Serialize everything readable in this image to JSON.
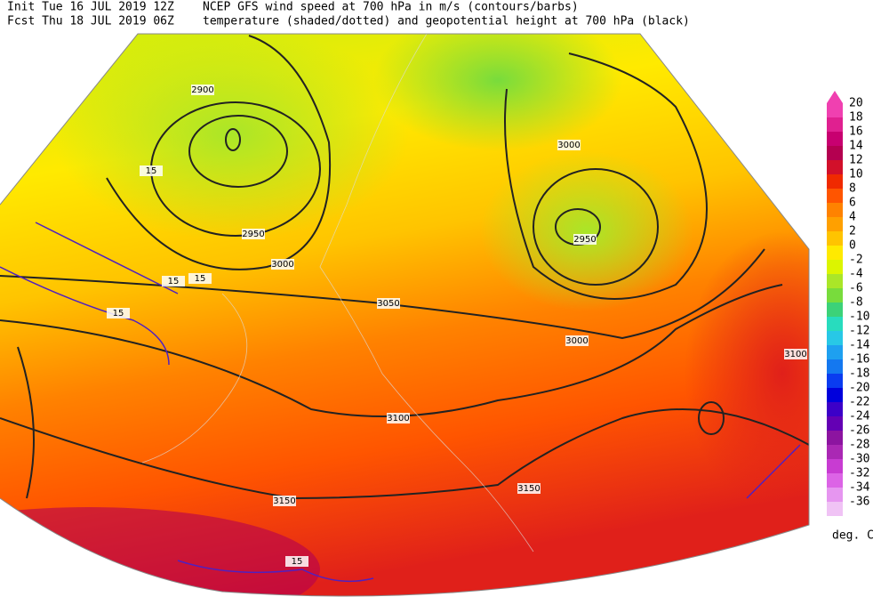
{
  "header": {
    "init": "Init  Tue 16 JUL 2019 12Z",
    "fcst": "Fcst Thu 18 JUL 2019 06Z",
    "title1": "NCEP GFS wind speed at 700 hPa in m/s (contours/barbs)",
    "title2": "temperature (shaded/dotted) and geopotential height at 700 hPa (black)"
  },
  "colorbar": {
    "unit": "deg. C",
    "levels": [
      {
        "value": 20,
        "color": "#f040b0"
      },
      {
        "value": 18,
        "color": "#e02090"
      },
      {
        "value": 16,
        "color": "#c80070"
      },
      {
        "value": 14,
        "color": "#b40050"
      },
      {
        "value": 12,
        "color": "#d2102a"
      },
      {
        "value": 10,
        "color": "#f02a00"
      },
      {
        "value": 8,
        "color": "#ff5500"
      },
      {
        "value": 6,
        "color": "#ff8200"
      },
      {
        "value": 4,
        "color": "#ffa000"
      },
      {
        "value": 2,
        "color": "#ffc400"
      },
      {
        "value": 0,
        "color": "#ffea00"
      },
      {
        "value": -2,
        "color": "#dcf500"
      },
      {
        "value": -4,
        "color": "#aae628"
      },
      {
        "value": -6,
        "color": "#78dc3c"
      },
      {
        "value": -8,
        "color": "#3cd278"
      },
      {
        "value": -10,
        "color": "#28dcbe"
      },
      {
        "value": -12,
        "color": "#28c8e6"
      },
      {
        "value": -14,
        "color": "#1ea0f0"
      },
      {
        "value": -16,
        "color": "#1478f0"
      },
      {
        "value": -18,
        "color": "#0a3cf0"
      },
      {
        "value": -20,
        "color": "#0000dc"
      },
      {
        "value": -22,
        "color": "#3c00c8"
      },
      {
        "value": -24,
        "color": "#6400b4"
      },
      {
        "value": -26,
        "color": "#8c14a0"
      },
      {
        "value": -28,
        "color": "#aa28b4"
      },
      {
        "value": -30,
        "color": "#c83cd2"
      },
      {
        "value": -32,
        "color": "#dc64e6"
      },
      {
        "value": -34,
        "color": "#e696f0"
      },
      {
        "value": -36,
        "color": "#f0c3f5"
      }
    ]
  },
  "contour_labels": [
    "2900",
    "2950",
    "3000",
    "2950",
    "3000",
    "3050",
    "3000",
    "3100",
    "3150",
    "3150",
    "3100",
    "15",
    "15",
    "15",
    "15",
    "15"
  ]
}
